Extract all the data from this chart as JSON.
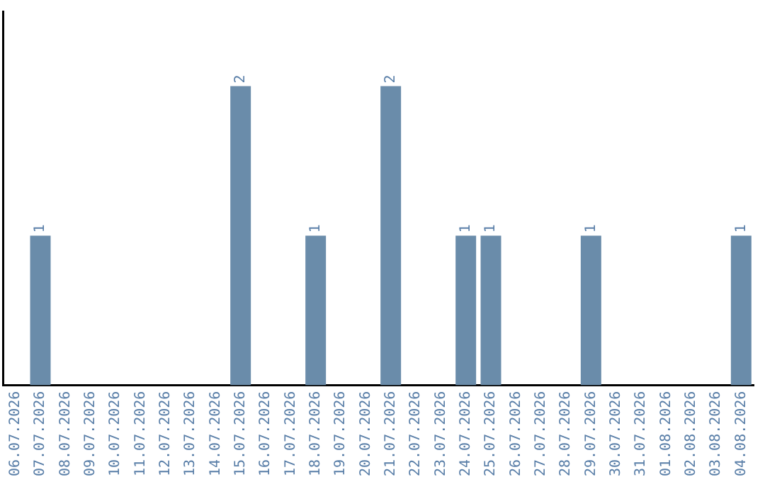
{
  "chart_data": {
    "type": "bar",
    "categories": [
      "06.07.2026",
      "07.07.2026",
      "08.07.2026",
      "09.07.2026",
      "10.07.2026",
      "11.07.2026",
      "12.07.2026",
      "13.07.2026",
      "14.07.2026",
      "15.07.2026",
      "16.07.2026",
      "17.07.2026",
      "18.07.2026",
      "19.07.2026",
      "20.07.2026",
      "21.07.2026",
      "22.07.2026",
      "23.07.2026",
      "24.07.2026",
      "25.07.2026",
      "26.07.2026",
      "27.07.2026",
      "28.07.2026",
      "29.07.2026",
      "30.07.2026",
      "31.07.2026",
      "01.08.2026",
      "02.08.2026",
      "03.08.2026",
      "04.08.2026"
    ],
    "values": [
      0,
      1,
      0,
      0,
      0,
      0,
      0,
      0,
      0,
      2,
      0,
      0,
      1,
      0,
      0,
      2,
      0,
      0,
      1,
      1,
      0,
      0,
      0,
      1,
      0,
      0,
      0,
      0,
      0,
      1
    ],
    "value_labels": [
      null,
      "1",
      null,
      null,
      null,
      null,
      null,
      null,
      null,
      "2",
      null,
      null,
      "1",
      null,
      null,
      "2",
      null,
      null,
      "1",
      "1",
      null,
      null,
      null,
      "1",
      null,
      null,
      null,
      null,
      null,
      "1"
    ],
    "color": "#6a8caa",
    "grid": false,
    "legend": false,
    "tick_labels": "x"
  }
}
